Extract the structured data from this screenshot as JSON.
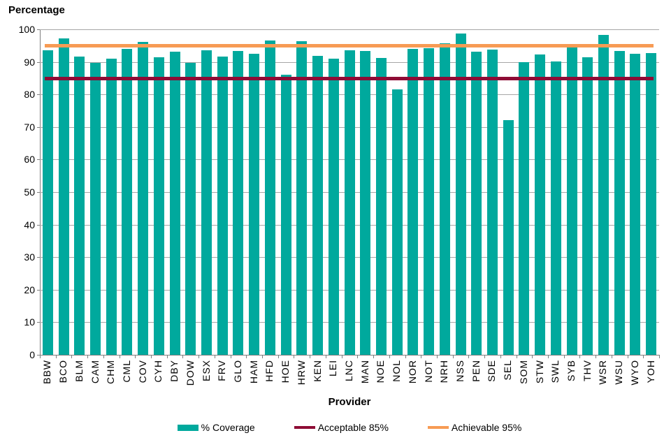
{
  "chart": {
    "y_axis_title": "Percentage",
    "x_axis_title": "Provider"
  },
  "chart_data": {
    "type": "bar",
    "title": "",
    "xlabel": "Provider",
    "ylabel": "Percentage",
    "ylim": [
      0,
      100
    ],
    "ytick_interval": 10,
    "grid": true,
    "legend_position": "bottom",
    "categories": [
      "BBW",
      "BCO",
      "BLM",
      "CAM",
      "CHM",
      "CML",
      "COV",
      "CYH",
      "DBY",
      "DOW",
      "ESX",
      "FRV",
      "GLO",
      "HAM",
      "HFD",
      "HOE",
      "HRW",
      "KEN",
      "LEI",
      "LNC",
      "MAN",
      "NOE",
      "NOL",
      "NOR",
      "NOT",
      "NRH",
      "NSS",
      "PEN",
      "SDE",
      "SEL",
      "SOM",
      "STW",
      "SWL",
      "SYB",
      "THV",
      "WSR",
      "WSU",
      "WYO",
      "YOH"
    ],
    "series": [
      {
        "name": "% Coverage",
        "type": "bar",
        "color": "#00a99d",
        "values": [
          93.5,
          97.3,
          91.7,
          89.7,
          91.0,
          94.1,
          96.2,
          91.4,
          93.2,
          89.8,
          93.5,
          91.7,
          93.4,
          92.4,
          96.6,
          86.1,
          96.3,
          91.8,
          90.9,
          93.5,
          93.4,
          91.3,
          81.5,
          94.1,
          94.3,
          95.7,
          98.8,
          93.2,
          93.7,
          72.2,
          90.0,
          92.2,
          90.2,
          94.6,
          91.5,
          98.3,
          93.4,
          92.4,
          92.8
        ]
      },
      {
        "name": "Acceptable 85%",
        "type": "hline",
        "color": "#8e0c35",
        "value": 85
      },
      {
        "name": "Achievable 95%",
        "type": "hline",
        "color": "#f79b54",
        "value": 95
      }
    ]
  },
  "legend": {
    "items": [
      {
        "label": "% Coverage",
        "swatch": "rect",
        "color": "#00a99d"
      },
      {
        "label": "Acceptable 85%",
        "swatch": "line",
        "color": "#8e0c35"
      },
      {
        "label": "Achievable 95%",
        "swatch": "line",
        "color": "#f79b54"
      }
    ]
  },
  "colors": {
    "bar": "#00a99d",
    "acceptable_line": "#8e0c35",
    "achievable_line": "#f79b54",
    "gridline": "#a6a6a6",
    "axis": "#7f7f7f",
    "text": "#000000",
    "background": "#ffffff"
  }
}
